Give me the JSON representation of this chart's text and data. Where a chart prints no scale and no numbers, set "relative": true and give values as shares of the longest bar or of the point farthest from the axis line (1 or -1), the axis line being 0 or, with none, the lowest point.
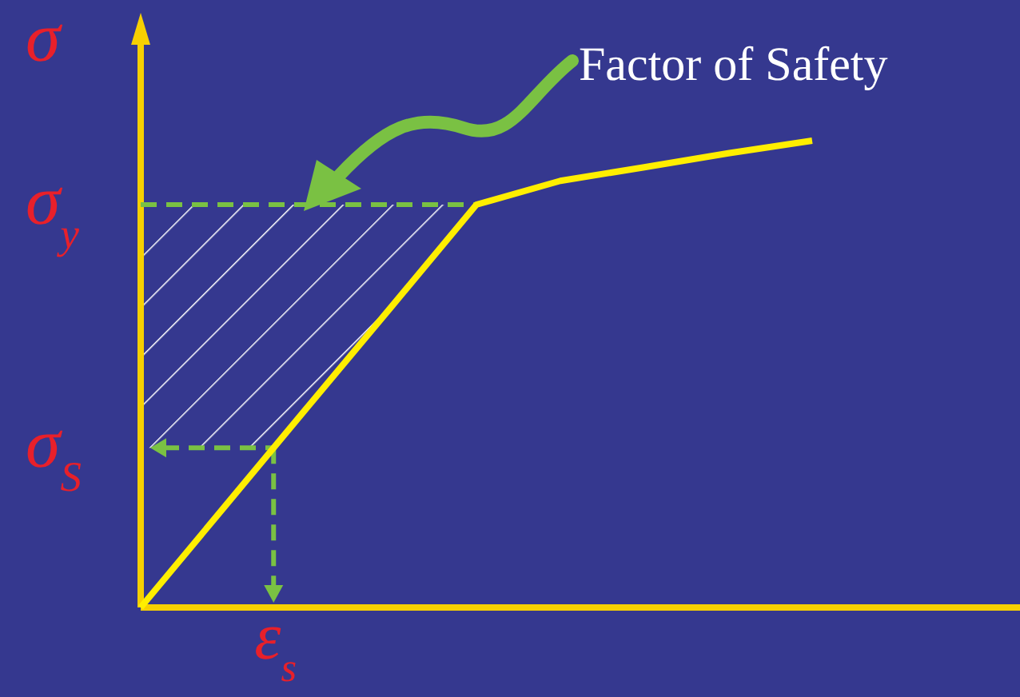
{
  "chart_data": {
    "type": "line",
    "relative": true,
    "ylabel": "σ",
    "categories": [
      null,
      null,
      null,
      null,
      null,
      null,
      null,
      null,
      null
    ],
    "series": [
      {
        "color": "#ffee00",
        "values": [
          0,
          0.216,
          0.432,
          0.647,
          0.863,
          0.914,
          0.943,
          0.973,
          1
        ]
      }
    ],
    "line_style": "solid",
    "marker": "none",
    "legend": false,
    "grid": false,
    "ref_lines": [
      {
        "axis": "y",
        "value": 0.863,
        "label": "σ$_{y}$",
        "color": "#7ac143",
        "line_style": "dashed"
      },
      {
        "axis": "y",
        "value": 0.342,
        "label": "σ$_{S}$",
        "color": "#7ac143",
        "line_style": "dashed"
      }
    ],
    "annotations": [
      {
        "text": "ε$_{s}$",
        "y": 0.342
      },
      "Factor of Safety"
    ]
  }
}
